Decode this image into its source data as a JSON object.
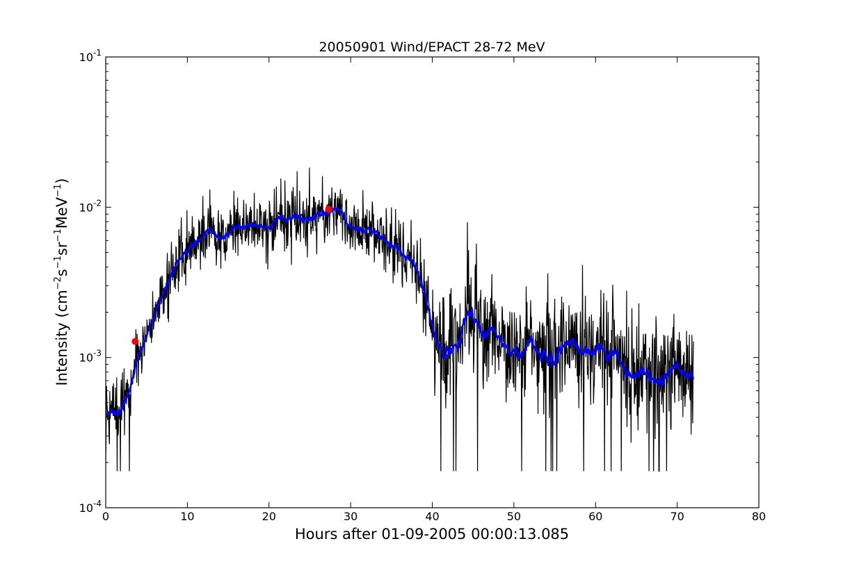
{
  "chart_data": {
    "type": "line",
    "title": "20050901 Wind/EPACT 28-72 MeV",
    "xlabel": "Hours after 01-09-2005 00:00:13.085",
    "ylabel": {
      "prefix": "Intensity (cm",
      "exp1": "−2",
      "part2": "s",
      "exp2": "−1",
      "part3": "sr",
      "exp3": "−1",
      "part4": "MeV",
      "exp4": "−1",
      "suffix": ")"
    },
    "xlim": [
      0,
      80
    ],
    "ylim": [
      0.0001,
      0.1
    ],
    "yscale": "log",
    "grid": false,
    "legend": "none",
    "x_ticks": [
      "0",
      "10",
      "20",
      "30",
      "40",
      "50",
      "60",
      "70",
      "80"
    ],
    "y_ticks": [
      {
        "base": "10",
        "exp": "-4",
        "value": 0.0001
      },
      {
        "base": "10",
        "exp": "-3",
        "value": 0.001
      },
      {
        "base": "10",
        "exp": "-2",
        "value": 0.01
      },
      {
        "base": "10",
        "exp": "-1",
        "value": 0.1
      }
    ],
    "series": [
      {
        "role": "raw",
        "color": "#000000",
        "x_range": [
          0,
          72
        ],
        "profile": [
          [
            0,
            0.00042
          ],
          [
            1,
            0.00045
          ],
          [
            2,
            0.0005
          ],
          [
            3,
            0.0007
          ],
          [
            4,
            0.001
          ],
          [
            5,
            0.0014
          ],
          [
            6,
            0.0019
          ],
          [
            7,
            0.0027
          ],
          [
            8,
            0.0035
          ],
          [
            9,
            0.0043
          ],
          [
            10,
            0.0051
          ],
          [
            12,
            0.0062
          ],
          [
            14,
            0.0066
          ],
          [
            16,
            0.0075
          ],
          [
            18,
            0.0078
          ],
          [
            20,
            0.0082
          ],
          [
            22,
            0.0085
          ],
          [
            24,
            0.0087
          ],
          [
            26,
            0.0089
          ],
          [
            27.5,
            0.0093
          ],
          [
            29,
            0.0085
          ],
          [
            30,
            0.0075
          ],
          [
            31,
            0.0074
          ],
          [
            33,
            0.0065
          ],
          [
            35,
            0.0055
          ],
          [
            37,
            0.0044
          ],
          [
            38.5,
            0.0033
          ],
          [
            39.5,
            0.0022
          ],
          [
            40.5,
            0.0014
          ],
          [
            42,
            0.0011
          ],
          [
            43.5,
            0.0016
          ],
          [
            44.5,
            0.0019
          ],
          [
            46,
            0.0015
          ],
          [
            48,
            0.0013
          ],
          [
            50,
            0.0012
          ],
          [
            55,
            0.00115
          ],
          [
            60,
            0.0011
          ],
          [
            63,
            0.00105
          ],
          [
            64.5,
            0.00065
          ],
          [
            66,
            0.00085
          ],
          [
            70,
            0.0008
          ],
          [
            72,
            0.00075
          ]
        ],
        "noise_sigma_before_40h": 0.24,
        "noise_sigma_after_40h": 0.42,
        "floor": 0.000175
      },
      {
        "role": "smoothed",
        "color": "#0000ff",
        "x_range": [
          0,
          72
        ]
      }
    ],
    "markers": [
      {
        "x": 3.6,
        "y": 0.00128,
        "color": "#ff0000"
      },
      {
        "x": 27.3,
        "y": 0.0097,
        "color": "#ff0000"
      }
    ]
  }
}
